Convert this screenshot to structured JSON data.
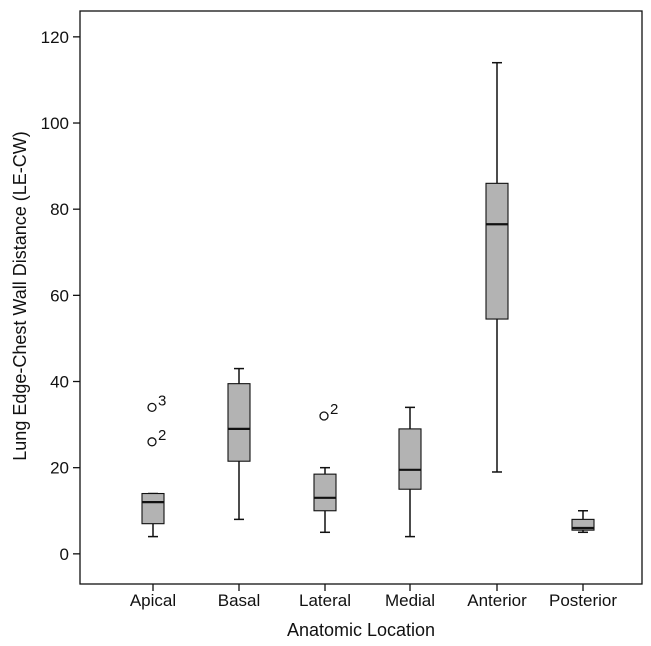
{
  "chart_data": {
    "type": "box",
    "xlabel": "Anatomic Location",
    "ylabel": "Lung Edge-Chest Wall Distance (LE-CW)",
    "ylim": [
      -7,
      126
    ],
    "yticks": [
      0,
      20,
      40,
      60,
      80,
      100,
      120
    ],
    "categories": [
      "Apical",
      "Basal",
      "Lateral",
      "Medial",
      "Anterior",
      "Posterior"
    ],
    "boxes": [
      {
        "category": "Apical",
        "whisker_low": 4,
        "q1": 7,
        "median": 12,
        "q3": 14,
        "whisker_high": 14,
        "outliers": [
          {
            "value": 26,
            "label": "2"
          },
          {
            "value": 34,
            "label": "3"
          }
        ]
      },
      {
        "category": "Basal",
        "whisker_low": 8,
        "q1": 21.5,
        "median": 29,
        "q3": 39.5,
        "whisker_high": 43,
        "outliers": []
      },
      {
        "category": "Lateral",
        "whisker_low": 5,
        "q1": 10,
        "median": 13,
        "q3": 18.5,
        "whisker_high": 20,
        "outliers": [
          {
            "value": 32,
            "label": "2"
          }
        ]
      },
      {
        "category": "Medial",
        "whisker_low": 4,
        "q1": 15,
        "median": 19.5,
        "q3": 29,
        "whisker_high": 34,
        "outliers": []
      },
      {
        "category": "Anterior",
        "whisker_low": 19,
        "q1": 54.5,
        "median": 76.5,
        "q3": 86,
        "whisker_high": 114,
        "outliers": []
      },
      {
        "category": "Posterior",
        "whisker_low": 5,
        "q1": 5.5,
        "median": 6,
        "q3": 8,
        "whisker_high": 10,
        "outliers": []
      }
    ],
    "colors": {
      "box_fill": "#b3b3b3",
      "line": "#111111"
    },
    "grid": false,
    "legend": "none"
  }
}
